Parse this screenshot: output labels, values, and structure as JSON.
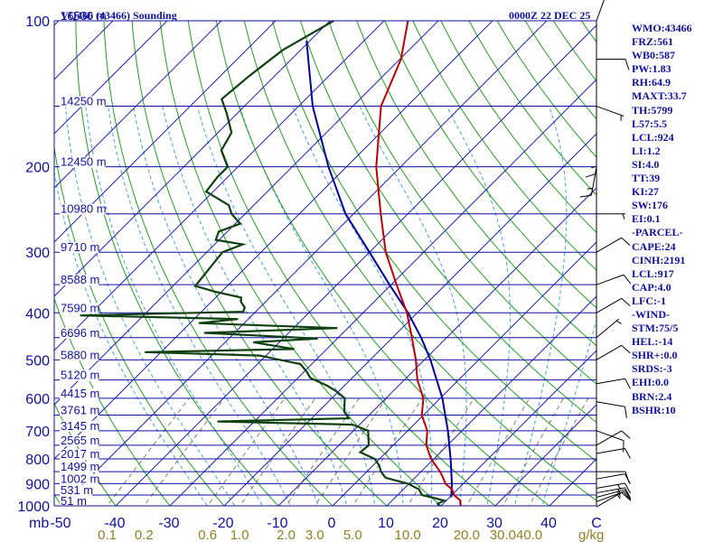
{
  "header": {
    "station": "VQ466 (43466) Sounding",
    "time": "0000Z 22 DEC 25"
  },
  "colors": {
    "frame": "#1010a0",
    "isobar": "#1010a0",
    "isotherm": "#2020b0",
    "dry_adiabat": "#20a020",
    "moist_adiabat": "#40a0e0",
    "mixing_ratio": "#808060",
    "temperature": "#c00000",
    "dewpoint": "#104010",
    "parcel": "#0000a0",
    "wind_barb": "#000000",
    "mixing_label": "#908020"
  },
  "panel": [
    "WMO:43466",
    "FRZ:561",
    "WB0:587",
    "PW:1.83",
    "RH:64.9",
    "MAXT:33.7",
    "TH:5799",
    "L57:5.5",
    "LCL:924",
    "LI:1.2",
    "SI:4.0",
    "TT:39",
    "KI:27",
    "SW:176",
    "EI:0.1",
    "-PARCEL-",
    "CAPE:24",
    "CINH:2191",
    "LCL:917",
    "CAP:4.0",
    "LFC:-1",
    "-WIND-",
    "STM:75/5",
    "HEL:-14",
    "SHR+:0.0",
    "SRDS:-3",
    "EHI:0.0",
    "BRN:2.4",
    "BSHR:10"
  ],
  "chart_data": {
    "type": "skew-t",
    "xlabel": "",
    "ylabel": "",
    "pressure_unit": "mb",
    "mixing_ratio_unit": "g/kg",
    "pressure_ticks": [
      100,
      200,
      300,
      400,
      500,
      600,
      700,
      800,
      900,
      1000
    ],
    "temperature_ticks": [
      -50,
      -40,
      -30,
      -20,
      -10,
      0,
      10,
      20,
      30,
      40
    ],
    "temperature_tick_labels": [
      "-50",
      "-40",
      "-30",
      "-20",
      "-10",
      "0",
      "10",
      "20",
      "30",
      "40",
      "C"
    ],
    "mixing_ratio_labels": [
      "0.1",
      "0.2",
      "0.6",
      "1.0",
      "2.0",
      "3.0",
      "5.0",
      "10.0",
      "20.0",
      "30.0",
      "40.0"
    ],
    "mixing_ratio_values": [
      0.1,
      0.2,
      0.6,
      1.0,
      2.0,
      3.0,
      5.0,
      10.0,
      20.0,
      30.0,
      40.0
    ],
    "height_labels": [
      {
        "p": 100,
        "label": "16530 m"
      },
      {
        "p": 150,
        "label": "14250 m"
      },
      {
        "p": 200,
        "label": "12450 m"
      },
      {
        "p": 250,
        "label": "10980 m"
      },
      {
        "p": 300,
        "label": "9710 m"
      },
      {
        "p": 350,
        "label": "8588 m"
      },
      {
        "p": 400,
        "label": "7590 m"
      },
      {
        "p": 450,
        "label": "6696 m"
      },
      {
        "p": 500,
        "label": "5880 m"
      },
      {
        "p": 550,
        "label": "5120 m"
      },
      {
        "p": 600,
        "label": "4415 m"
      },
      {
        "p": 650,
        "label": "3761 m"
      },
      {
        "p": 700,
        "label": "3145 m"
      },
      {
        "p": 750,
        "label": "2565 m"
      },
      {
        "p": 800,
        "label": "2017 m"
      },
      {
        "p": 850,
        "label": "1499 m"
      },
      {
        "p": 900,
        "label": "1002 m"
      },
      {
        "p": 950,
        "label": "531 m"
      },
      {
        "p": 1000,
        "label": "51 m"
      }
    ],
    "temperature_profile": [
      [
        1007,
        24.7
      ],
      [
        1000,
        23.6
      ],
      [
        975,
        22.6
      ],
      [
        950,
        20.4
      ],
      [
        925,
        19.0
      ],
      [
        900,
        16.7
      ],
      [
        875,
        15.2
      ],
      [
        850,
        13.5
      ],
      [
        800,
        9.5
      ],
      [
        750,
        6.1
      ],
      [
        700,
        3.6
      ],
      [
        650,
        -0.3
      ],
      [
        600,
        -3.1
      ],
      [
        550,
        -7.6
      ],
      [
        500,
        -11.6
      ],
      [
        450,
        -16.4
      ],
      [
        400,
        -21.9
      ],
      [
        350,
        -29.0
      ],
      [
        300,
        -37.0
      ],
      [
        250,
        -45.0
      ],
      [
        200,
        -54.5
      ],
      [
        150,
        -64.8
      ],
      [
        120,
        -69.8
      ],
      [
        100,
        -75.6
      ]
    ],
    "dewpoint_profile": [
      [
        1007,
        19.9
      ],
      [
        1000,
        19.7
      ],
      [
        990,
        19.0
      ],
      [
        975,
        19.6
      ],
      [
        950,
        14.5
      ],
      [
        925,
        12.9
      ],
      [
        900,
        9.8
      ],
      [
        875,
        4.6
      ],
      [
        850,
        2.6
      ],
      [
        825,
        1.1
      ],
      [
        800,
        -0.9
      ],
      [
        775,
        -4.8
      ],
      [
        750,
        -4.5
      ],
      [
        725,
        -5.9
      ],
      [
        700,
        -7.3
      ],
      [
        680,
        -11.3
      ],
      [
        670,
        -36.8
      ],
      [
        660,
        -13.2
      ],
      [
        640,
        -15.2
      ],
      [
        600,
        -17.6
      ],
      [
        580,
        -20.5
      ],
      [
        565,
        -23.2
      ],
      [
        545,
        -27.7
      ],
      [
        530,
        -29.4
      ],
      [
        510,
        -32.1
      ],
      [
        500,
        -36.7
      ],
      [
        490,
        -41.2
      ],
      [
        482,
        -63.0
      ],
      [
        475,
        -36.0
      ],
      [
        460,
        -44.8
      ],
      [
        452,
        -33.6
      ],
      [
        440,
        -55.6
      ],
      [
        430,
        -31.9
      ],
      [
        420,
        -58.4
      ],
      [
        412,
        -51.9
      ],
      [
        405,
        -81.7
      ],
      [
        398,
        -52.3
      ],
      [
        390,
        -52.8
      ],
      [
        380,
        -54.5
      ],
      [
        372,
        -55.3
      ],
      [
        362,
        -61.1
      ],
      [
        352,
        -65.9
      ],
      [
        300,
        -67.1
      ],
      [
        289,
        -64.8
      ],
      [
        283,
        -70.6
      ],
      [
        272,
        -71.6
      ],
      [
        262,
        -69.1
      ],
      [
        250,
        -72.5
      ],
      [
        240,
        -74.6
      ],
      [
        225,
        -81.3
      ],
      [
        210,
        -81.9
      ],
      [
        200,
        -81.9
      ],
      [
        185,
        -86.1
      ],
      [
        170,
        -87.5
      ],
      [
        155,
        -92.0
      ],
      [
        145,
        -95.5
      ],
      [
        130,
        -94.7
      ],
      [
        115,
        -93.3
      ],
      [
        100,
        -89.3
      ]
    ],
    "parcel_profile": [
      [
        960,
        20.3
      ],
      [
        900,
        17.9
      ],
      [
        800,
        13.1
      ],
      [
        700,
        7.4
      ],
      [
        600,
        0.4
      ],
      [
        500,
        -8.9
      ],
      [
        450,
        -14.7
      ],
      [
        400,
        -21.7
      ],
      [
        350,
        -30.3
      ],
      [
        300,
        -40.0
      ],
      [
        250,
        -51.5
      ],
      [
        200,
        -63.3
      ],
      [
        150,
        -77.4
      ],
      [
        110,
        -90.6
      ]
    ],
    "wind_barbs": [
      {
        "p": 1005,
        "dir": 60,
        "spd": 10
      },
      {
        "p": 980,
        "dir": 70,
        "spd": 15
      },
      {
        "p": 960,
        "dir": 75,
        "spd": 15
      },
      {
        "p": 940,
        "dir": 80,
        "spd": 15
      },
      {
        "p": 920,
        "dir": 80,
        "spd": 15
      },
      {
        "p": 880,
        "dir": 80,
        "spd": 10
      },
      {
        "p": 850,
        "dir": 90,
        "spd": 10
      },
      {
        "p": 780,
        "dir": 80,
        "spd": 10
      },
      {
        "p": 750,
        "dir": 60,
        "spd": 10
      },
      {
        "p": 700,
        "dir": 110,
        "spd": 10
      },
      {
        "p": 610,
        "dir": 100,
        "spd": 10
      },
      {
        "p": 560,
        "dir": 80,
        "spd": 10
      },
      {
        "p": 500,
        "dir": 60,
        "spd": 10
      },
      {
        "p": 450,
        "dir": 50,
        "spd": 5
      },
      {
        "p": 400,
        "dir": 60,
        "spd": 10
      },
      {
        "p": 350,
        "dir": 70,
        "spd": 10
      },
      {
        "p": 300,
        "dir": 60,
        "spd": 10
      },
      {
        "p": 250,
        "dir": 90,
        "spd": 5
      },
      {
        "p": 200,
        "dir": 190,
        "spd": 15
      },
      {
        "p": 180,
        "dir": 180,
        "spd": 15
      },
      {
        "p": 150,
        "dir": 110,
        "spd": 5
      },
      {
        "p": 120,
        "dir": 90,
        "spd": 10
      },
      {
        "p": 100,
        "dir": 20,
        "spd": 10
      }
    ]
  }
}
